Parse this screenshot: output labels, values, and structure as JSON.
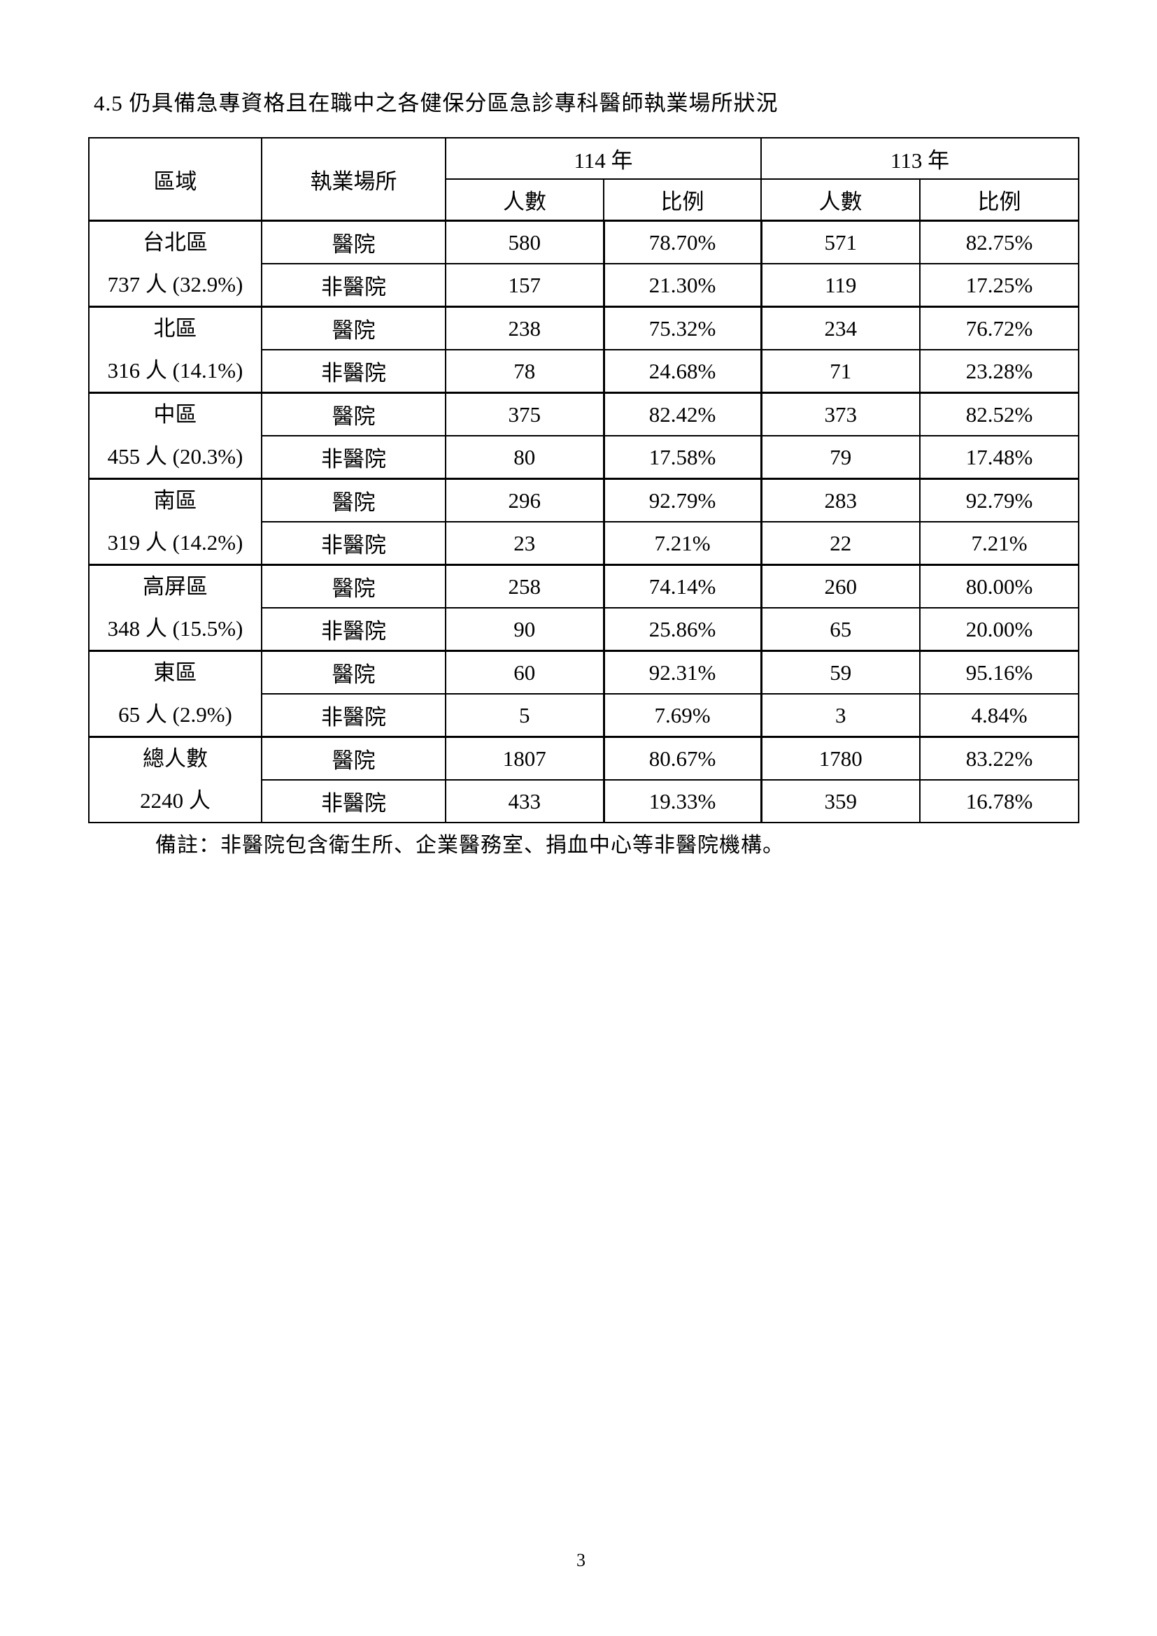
{
  "title": "4.5 仍具備急專資格且在職中之各健保分區急診專科醫師執業場所狀況",
  "headers": {
    "region": "區域",
    "workplace": "執業場所",
    "year_a": "114 年",
    "year_b": "113 年",
    "count": "人數",
    "ratio": "比例"
  },
  "groups": [
    {
      "name": "台北區",
      "total": "737 人 (32.9%)",
      "rows": [
        {
          "place": "醫院",
          "a_count": "580",
          "a_ratio": "78.70%",
          "b_count": "571",
          "b_ratio": "82.75%"
        },
        {
          "place": "非醫院",
          "a_count": "157",
          "a_ratio": "21.30%",
          "b_count": "119",
          "b_ratio": "17.25%"
        }
      ]
    },
    {
      "name": "北區",
      "total": "316 人 (14.1%)",
      "rows": [
        {
          "place": "醫院",
          "a_count": "238",
          "a_ratio": "75.32%",
          "b_count": "234",
          "b_ratio": "76.72%"
        },
        {
          "place": "非醫院",
          "a_count": "78",
          "a_ratio": "24.68%",
          "b_count": "71",
          "b_ratio": "23.28%"
        }
      ]
    },
    {
      "name": "中區",
      "total": "455 人 (20.3%)",
      "rows": [
        {
          "place": "醫院",
          "a_count": "375",
          "a_ratio": "82.42%",
          "b_count": "373",
          "b_ratio": "82.52%"
        },
        {
          "place": "非醫院",
          "a_count": "80",
          "a_ratio": "17.58%",
          "b_count": "79",
          "b_ratio": "17.48%"
        }
      ]
    },
    {
      "name": "南區",
      "total": "319 人 (14.2%)",
      "rows": [
        {
          "place": "醫院",
          "a_count": "296",
          "a_ratio": "92.79%",
          "b_count": "283",
          "b_ratio": "92.79%"
        },
        {
          "place": "非醫院",
          "a_count": "23",
          "a_ratio": "7.21%",
          "b_count": "22",
          "b_ratio": "7.21%"
        }
      ]
    },
    {
      "name": "高屏區",
      "total": "348 人 (15.5%)",
      "rows": [
        {
          "place": "醫院",
          "a_count": "258",
          "a_ratio": "74.14%",
          "b_count": "260",
          "b_ratio": "80.00%"
        },
        {
          "place": "非醫院",
          "a_count": "90",
          "a_ratio": "25.86%",
          "b_count": "65",
          "b_ratio": "20.00%"
        }
      ]
    },
    {
      "name": "東區",
      "total": "65 人 (2.9%)",
      "rows": [
        {
          "place": "醫院",
          "a_count": "60",
          "a_ratio": "92.31%",
          "b_count": "59",
          "b_ratio": "95.16%"
        },
        {
          "place": "非醫院",
          "a_count": "5",
          "a_ratio": "7.69%",
          "b_count": "3",
          "b_ratio": "4.84%"
        }
      ]
    },
    {
      "name": "總人數",
      "total": "2240 人",
      "rows": [
        {
          "place": "醫院",
          "a_count": "1807",
          "a_ratio": "80.67%",
          "b_count": "1780",
          "b_ratio": "83.22%"
        },
        {
          "place": "非醫院",
          "a_count": "433",
          "a_ratio": "19.33%",
          "b_count": "359",
          "b_ratio": "16.78%"
        }
      ]
    }
  ],
  "note": "備註：非醫院包含衛生所、企業醫務室、捐血中心等非醫院機構。",
  "page_number": "3"
}
